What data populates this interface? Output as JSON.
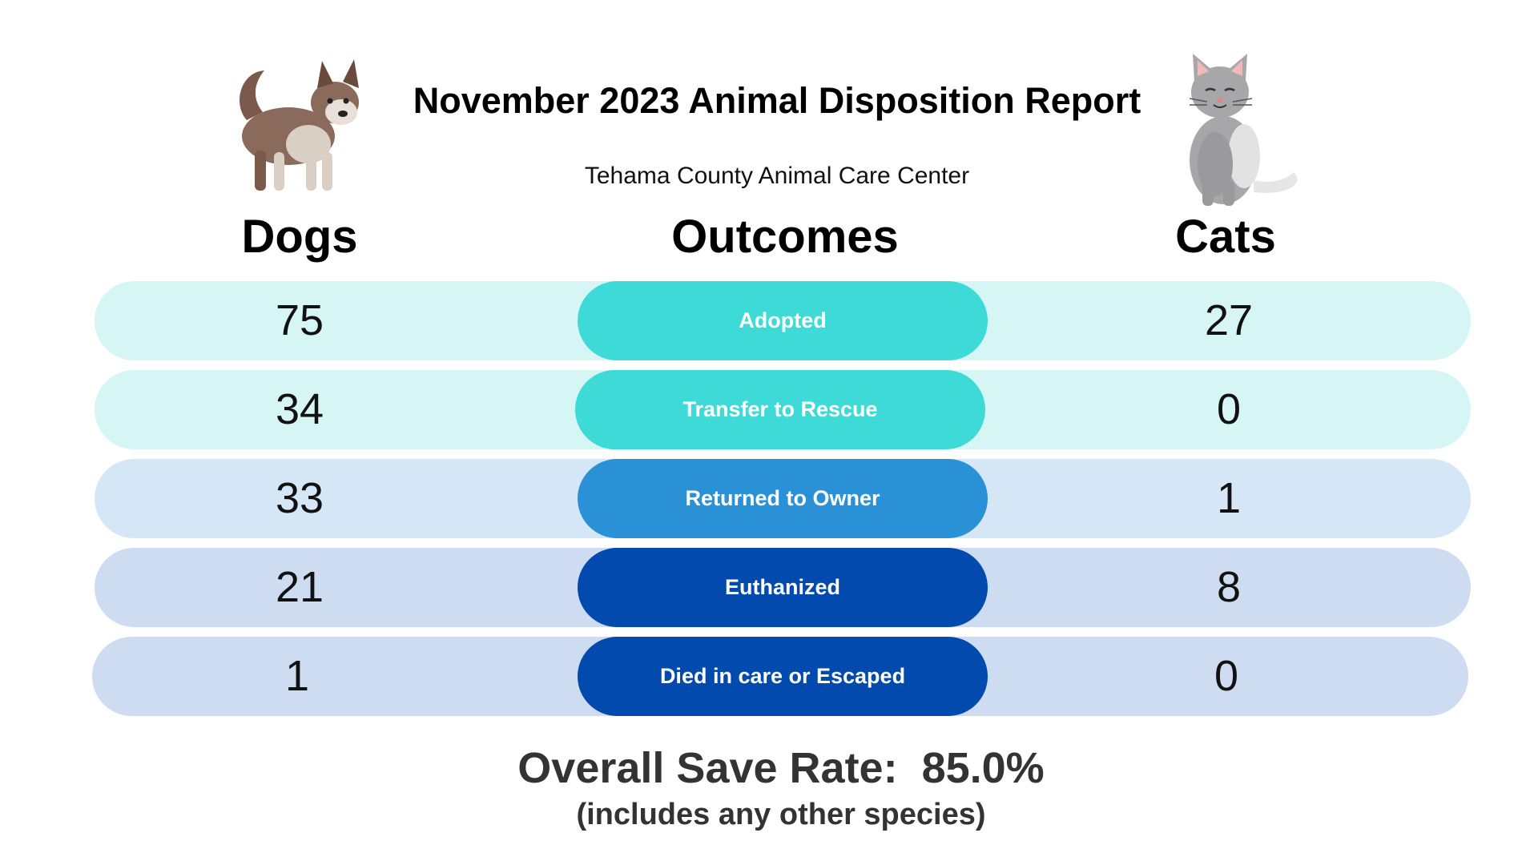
{
  "header": {
    "title": "November 2023 Animal Disposition Report",
    "subtitle": "Tehama County Animal Care Center"
  },
  "columns": {
    "dogs": "Dogs",
    "outcomes": "Outcomes",
    "cats": "Cats"
  },
  "rows": [
    {
      "outcome": "Adopted",
      "dogs": "75",
      "cats": "27"
    },
    {
      "outcome": "Transfer to Rescue",
      "dogs": "34",
      "cats": "0"
    },
    {
      "outcome": "Returned to Owner",
      "dogs": "33",
      "cats": "1"
    },
    {
      "outcome": "Euthanized",
      "dogs": "21",
      "cats": "8"
    },
    {
      "outcome": "Died in care or Escaped",
      "dogs": "1",
      "cats": "0"
    }
  ],
  "footer": {
    "save_rate": "Overall Save Rate:  85.0%",
    "note": "(includes any other species)"
  },
  "colors": {
    "row_light_teal": "#d6f6f5",
    "row_light_blue": "#d5e7f6",
    "row_blue": "#cddcf0",
    "pill_teal": "#3ddad7",
    "pill_blue": "#2b91d6",
    "pill_navy": "#024aad"
  },
  "icons": {
    "dog": "dog-illustration",
    "cat": "cat-illustration"
  }
}
